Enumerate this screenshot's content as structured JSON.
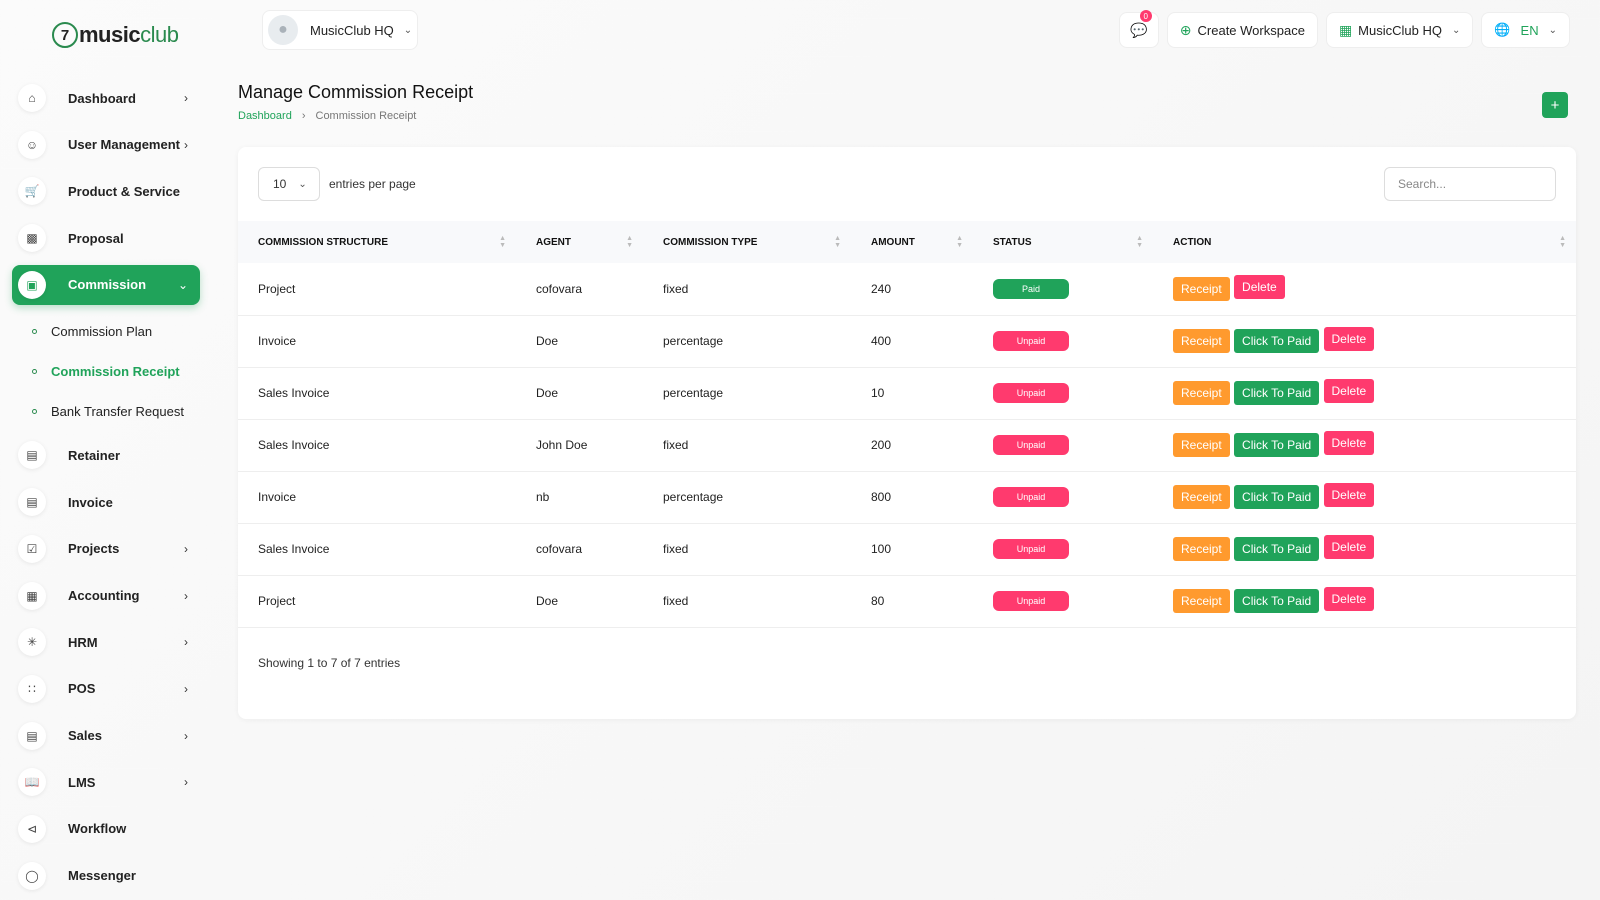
{
  "brand": {
    "mark": "7",
    "name_bold": "music",
    "name_light": "club"
  },
  "header": {
    "workspace_label": "MusicClub HQ",
    "notification_count": "0",
    "create_workspace": "Create Workspace",
    "workspace_switch": "MusicClub HQ",
    "language": "EN"
  },
  "sidebar": {
    "items": [
      {
        "label": "Dashboard",
        "icon": "home-icon",
        "chevron": true
      },
      {
        "label": "User Management",
        "icon": "users-icon",
        "chevron": true
      },
      {
        "label": "Product & Service",
        "icon": "cart-icon",
        "chevron": false
      },
      {
        "label": "Proposal",
        "icon": "proposal-icon",
        "chevron": false
      },
      {
        "label": "Commission",
        "icon": "commission-icon",
        "chevron": true,
        "active": true
      }
    ],
    "sub_items": [
      "Commission Plan",
      "Commission Receipt",
      "Bank Transfer Request"
    ],
    "items_after": [
      {
        "label": "Retainer",
        "icon": "retainer-icon",
        "chevron": false
      },
      {
        "label": "Invoice",
        "icon": "invoice-icon",
        "chevron": false
      },
      {
        "label": "Projects",
        "icon": "projects-icon",
        "chevron": true
      },
      {
        "label": "Accounting",
        "icon": "accounting-icon",
        "chevron": true
      },
      {
        "label": "HRM",
        "icon": "hrm-icon",
        "chevron": true
      },
      {
        "label": "POS",
        "icon": "pos-icon",
        "chevron": true
      },
      {
        "label": "Sales",
        "icon": "sales-icon",
        "chevron": true
      },
      {
        "label": "LMS",
        "icon": "lms-icon",
        "chevron": true
      },
      {
        "label": "Workflow",
        "icon": "workflow-icon",
        "chevron": false
      },
      {
        "label": "Messenger",
        "icon": "messenger-icon",
        "chevron": false
      }
    ]
  },
  "page": {
    "title": "Manage Commission Receipt",
    "breadcrumb_home": "Dashboard",
    "breadcrumb_current": "Commission Receipt"
  },
  "table_controls": {
    "entries_value": "10",
    "entries_label": "entries per page",
    "search_placeholder": "Search..."
  },
  "table": {
    "columns": [
      "COMMISSION STRUCTURE",
      "AGENT",
      "COMMISSION TYPE",
      "AMOUNT",
      "STATUS",
      "ACTION"
    ],
    "rows": [
      {
        "structure": "Project",
        "agent": "cofovara",
        "type": "fixed",
        "amount": "240",
        "status": "Paid"
      },
      {
        "structure": "Invoice",
        "agent": "Doe",
        "type": "percentage",
        "amount": "400",
        "status": "Unpaid"
      },
      {
        "structure": "Sales Invoice",
        "agent": "Doe",
        "type": "percentage",
        "amount": "10",
        "status": "Unpaid"
      },
      {
        "structure": "Sales Invoice",
        "agent": "John Doe",
        "type": "fixed",
        "amount": "200",
        "status": "Unpaid"
      },
      {
        "structure": "Invoice",
        "agent": "nb",
        "type": "percentage",
        "amount": "800",
        "status": "Unpaid"
      },
      {
        "structure": "Sales Invoice",
        "agent": "cofovara",
        "type": "fixed",
        "amount": "100",
        "status": "Unpaid"
      },
      {
        "structure": "Project",
        "agent": "Doe",
        "type": "fixed",
        "amount": "80",
        "status": "Unpaid"
      }
    ],
    "action_labels": {
      "receipt": "Receipt",
      "to_paid": "Click To Paid",
      "delete": "Delete"
    }
  },
  "footer": {
    "showing": "Showing 1 to 7 of 7 entries"
  },
  "colors": {
    "accent": "#20a35a",
    "danger": "#ff3a6e",
    "warning": "#ff9a2e"
  }
}
